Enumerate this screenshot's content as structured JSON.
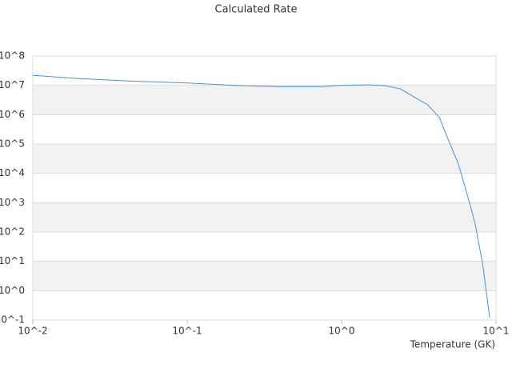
{
  "chart_data": {
    "type": "line",
    "title": "Calculated Rate",
    "x_label": "Temperature (GK)",
    "x_log": true,
    "y_log": true,
    "xlim": [
      0.01,
      10
    ],
    "ylim": [
      0.1,
      100000000
    ],
    "xticks": [
      {
        "value": 0.01,
        "label": "10^-2"
      },
      {
        "value": 0.1,
        "label": "10^-1"
      },
      {
        "value": 1,
        "label": "10^0"
      },
      {
        "value": 10,
        "label": "10^1"
      }
    ],
    "yticks": [
      {
        "value": 0.1,
        "label": "10^-1"
      },
      {
        "value": 1,
        "label": "10^0"
      },
      {
        "value": 10,
        "label": "10^1"
      },
      {
        "value": 100,
        "label": "10^2"
      },
      {
        "value": 1000,
        "label": "10^3"
      },
      {
        "value": 10000,
        "label": "10^4"
      },
      {
        "value": 100000,
        "label": "10^5"
      },
      {
        "value": 1000000,
        "label": "10^6"
      },
      {
        "value": 10000000,
        "label": "10^7"
      },
      {
        "value": 100000000,
        "label": "10^8"
      }
    ],
    "series": [
      {
        "color": "#4a90e2",
        "x": [
          0.01,
          0.02,
          0.042,
          0.1,
          0.22,
          0.4,
          0.72,
          1,
          1.5,
          1.9,
          2.4,
          3.0,
          3.6,
          4.3,
          5.0,
          5.7,
          6.4,
          7.3,
          8.2,
          9.1
        ],
        "values": [
          22000000,
          17000000,
          14000000,
          12000000,
          9800000,
          9000000,
          9000000,
          10000000,
          10400000,
          9800000,
          7600000,
          3800000,
          2200000,
          800000,
          110000,
          21000,
          2600,
          210,
          8,
          0.12
        ]
      }
    ]
  }
}
